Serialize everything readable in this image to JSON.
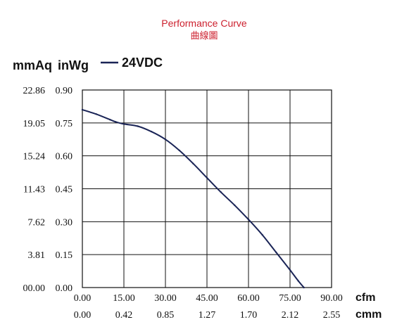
{
  "title": "Performance Curve",
  "title_zh": "曲線圖",
  "y_unit_mm": "mmAq",
  "y_unit_in": "inWg",
  "x_unit_cfm": "cfm",
  "x_unit_cmm": "cmm",
  "colors": {
    "title": "#cc1f2d",
    "curve": "#1a2456",
    "grid": "#111111"
  },
  "chart_data": {
    "type": "line",
    "title": "Performance Curve",
    "subtitle": "曲線圖",
    "xlabel": "cfm",
    "ylabel": "inWg",
    "xlim": [
      0,
      90
    ],
    "ylim": [
      0,
      0.9
    ],
    "grid": true,
    "legend_position": "top-left",
    "x_ticks": [
      "0.00",
      "15.00",
      "30.00",
      "45.00",
      "60.00",
      "75.00",
      "90.00"
    ],
    "x_ticks_secondary": [
      "0.00",
      "0.42",
      "0.85",
      "1.27",
      "1.70",
      "2.12",
      "2.55"
    ],
    "y_ticks_inwg": [
      "0.00",
      "0.15",
      "0.30",
      "0.45",
      "0.60",
      "0.75",
      "0.90"
    ],
    "y_ticks_mmaq": [
      "00.00",
      "3.81",
      "7.62",
      "11.43",
      "15.24",
      "19.05",
      "22.86"
    ],
    "series": [
      {
        "name": "24VDC",
        "x": [
          0,
          5,
          10,
          12,
          15,
          20,
          25,
          30,
          35,
          40,
          45,
          50,
          55,
          60,
          65,
          70,
          75,
          78,
          80
        ],
        "y": [
          0.81,
          0.79,
          0.765,
          0.755,
          0.745,
          0.735,
          0.71,
          0.675,
          0.625,
          0.565,
          0.5,
          0.435,
          0.375,
          0.31,
          0.24,
          0.16,
          0.08,
          0.03,
          0.0
        ]
      }
    ]
  }
}
